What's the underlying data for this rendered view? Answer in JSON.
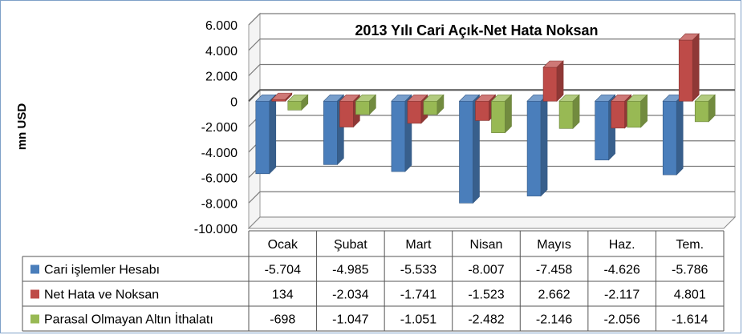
{
  "chart_data": {
    "type": "bar",
    "title": "2013 Yılı Cari Açık-Net Hata Noksan",
    "ylabel": "mn USD",
    "xlabel": "",
    "categories": [
      "Ocak",
      "Şubat",
      "Mart",
      "Nisan",
      "Mayıs",
      "Haz.",
      "Tem."
    ],
    "ylim": [
      -10000,
      6000
    ],
    "yticks": [
      6000,
      4000,
      2000,
      0,
      -2000,
      -4000,
      -6000,
      -8000,
      -10000
    ],
    "ytick_labels": [
      "6.000",
      "4.000",
      "2.000",
      "0",
      "-2.000",
      "-4.000",
      "-6.000",
      "-8.000",
      "-10.000"
    ],
    "grid": true,
    "legend": "data-table",
    "series": [
      {
        "name": "Cari işlemler Hesabı",
        "color": "#4a7ebb",
        "values": [
          -5704,
          -4985,
          -5533,
          -8007,
          -7458,
          -4626,
          -5786
        ],
        "labels": [
          "-5.704",
          "-4.985",
          "-5.533",
          "-8.007",
          "-7.458",
          "-4.626",
          "-5.786"
        ]
      },
      {
        "name": "Net Hata ve Noksan",
        "color": "#be4b48",
        "values": [
          134,
          -2034,
          -1741,
          -1523,
          2662,
          -2117,
          4801
        ],
        "labels": [
          "134",
          "-2.034",
          "-1.741",
          "-1.523",
          "2.662",
          "-2.117",
          "4.801"
        ]
      },
      {
        "name": "Parasal Olmayan Altın İthalatı",
        "color": "#98b954",
        "values": [
          -698,
          -1047,
          -1051,
          -2482,
          -2146,
          -2056,
          -1614
        ],
        "labels": [
          "-698",
          "-1.047",
          "-1.051",
          "-2.482",
          "-2.146",
          "-2.056",
          "-1.614"
        ]
      }
    ]
  }
}
